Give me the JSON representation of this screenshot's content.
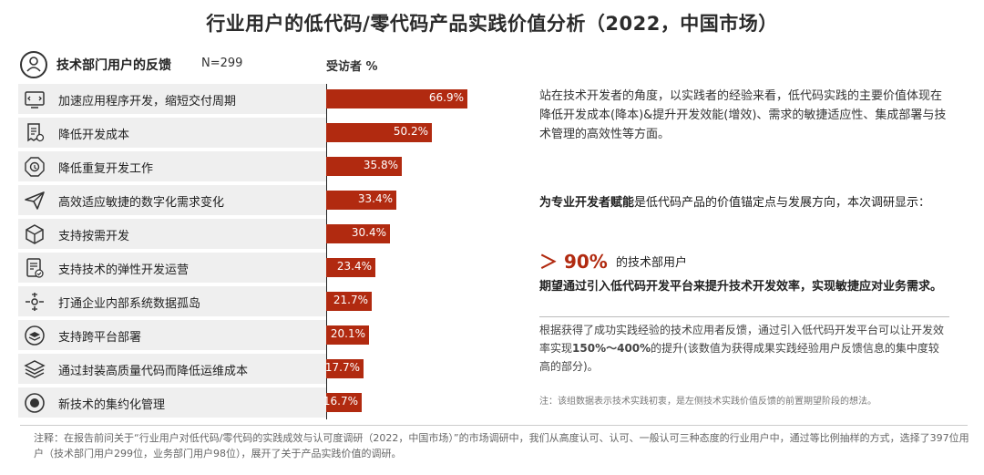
{
  "title": "行业用户的低代码/零代码产品实践价值分析（2022，中国市场）",
  "header": {
    "label": "技术部门用户的反馈",
    "n": "N=299",
    "pct_label": "受访者 %"
  },
  "chart_data": {
    "type": "bar",
    "orientation": "horizontal",
    "title": "技术部门用户的反馈",
    "xlabel": "受访者 %",
    "xlim": [
      0,
      100
    ],
    "categories": [
      "加速应用程序开发，缩短交付周期",
      "降低开发成本",
      "降低重复开发工作",
      "高效适应敏捷的数字化需求变化",
      "支持按需开发",
      "支持技术的弹性开发运营",
      "打通企业内部系统数据孤岛",
      "支持跨平台部署",
      "通过封装高质量代码而降低运维成本",
      "新技术的集约化管理"
    ],
    "values": [
      66.9,
      50.2,
      35.8,
      33.4,
      30.4,
      23.4,
      21.7,
      20.1,
      17.7,
      16.7
    ],
    "value_labels": [
      "66.9%",
      "50.2%",
      "35.8%",
      "33.4%",
      "30.4%",
      "23.4%",
      "21.7%",
      "20.1%",
      "17.7%",
      "16.7%"
    ],
    "icons": [
      "code-window-icon",
      "cost-receipt-icon",
      "refresh-circle-icon",
      "paper-plane-icon",
      "cube-icon",
      "document-check-icon",
      "network-link-icon",
      "layers-circle-icon",
      "stack-icon",
      "target-icon"
    ],
    "bar_color": "#b12a10"
  },
  "right": {
    "para1": "站在技术开发者的角度，以实践者的经验来看，低代码实践的主要价值体现在降低开发成本(降本)&提升开发效能(增效)、需求的敏捷适应性、集成部署与技术管理的高效性等方面。",
    "para2_bold": "为专业开发者赋能",
    "para2_rest": "是低代码产品的价值锚定点与发展方向，本次调研显示：",
    "big_value": "＞ 90%",
    "big_suffix": "的技术部用户",
    "para3": "期望通过引入低代码开发平台来提升技术开发效率，实现敏捷应对业务需求。",
    "para4_a": "根据获得了成功实践经验的技术应用者反馈，通过引入低代码开发平台可以让开发效率实现",
    "para4_bold": "150%～400%",
    "para4_b": "的提升(该数值为获得成果实践经验用户反馈信息的集中度较高的部分)。",
    "para5": "注：该组数据表示技术实践初衷，是左侧技术实践价值反馈的前置期望阶段的想法。"
  },
  "footer": "注释：在报告前问关于“行业用户对低代码/零代码的实践成效与认可度调研（2022，中国市场）”的市场调研中，我们从高度认可、认可、一般认可三种态度的行业用户中，通过等比例抽样的方式，选择了397位用户（技术部门用户299位，业务部门用户98位），展开了关于产品实践价值的调研。",
  "colors": {
    "accent": "#b12a10",
    "row_bg": "#efefef"
  }
}
